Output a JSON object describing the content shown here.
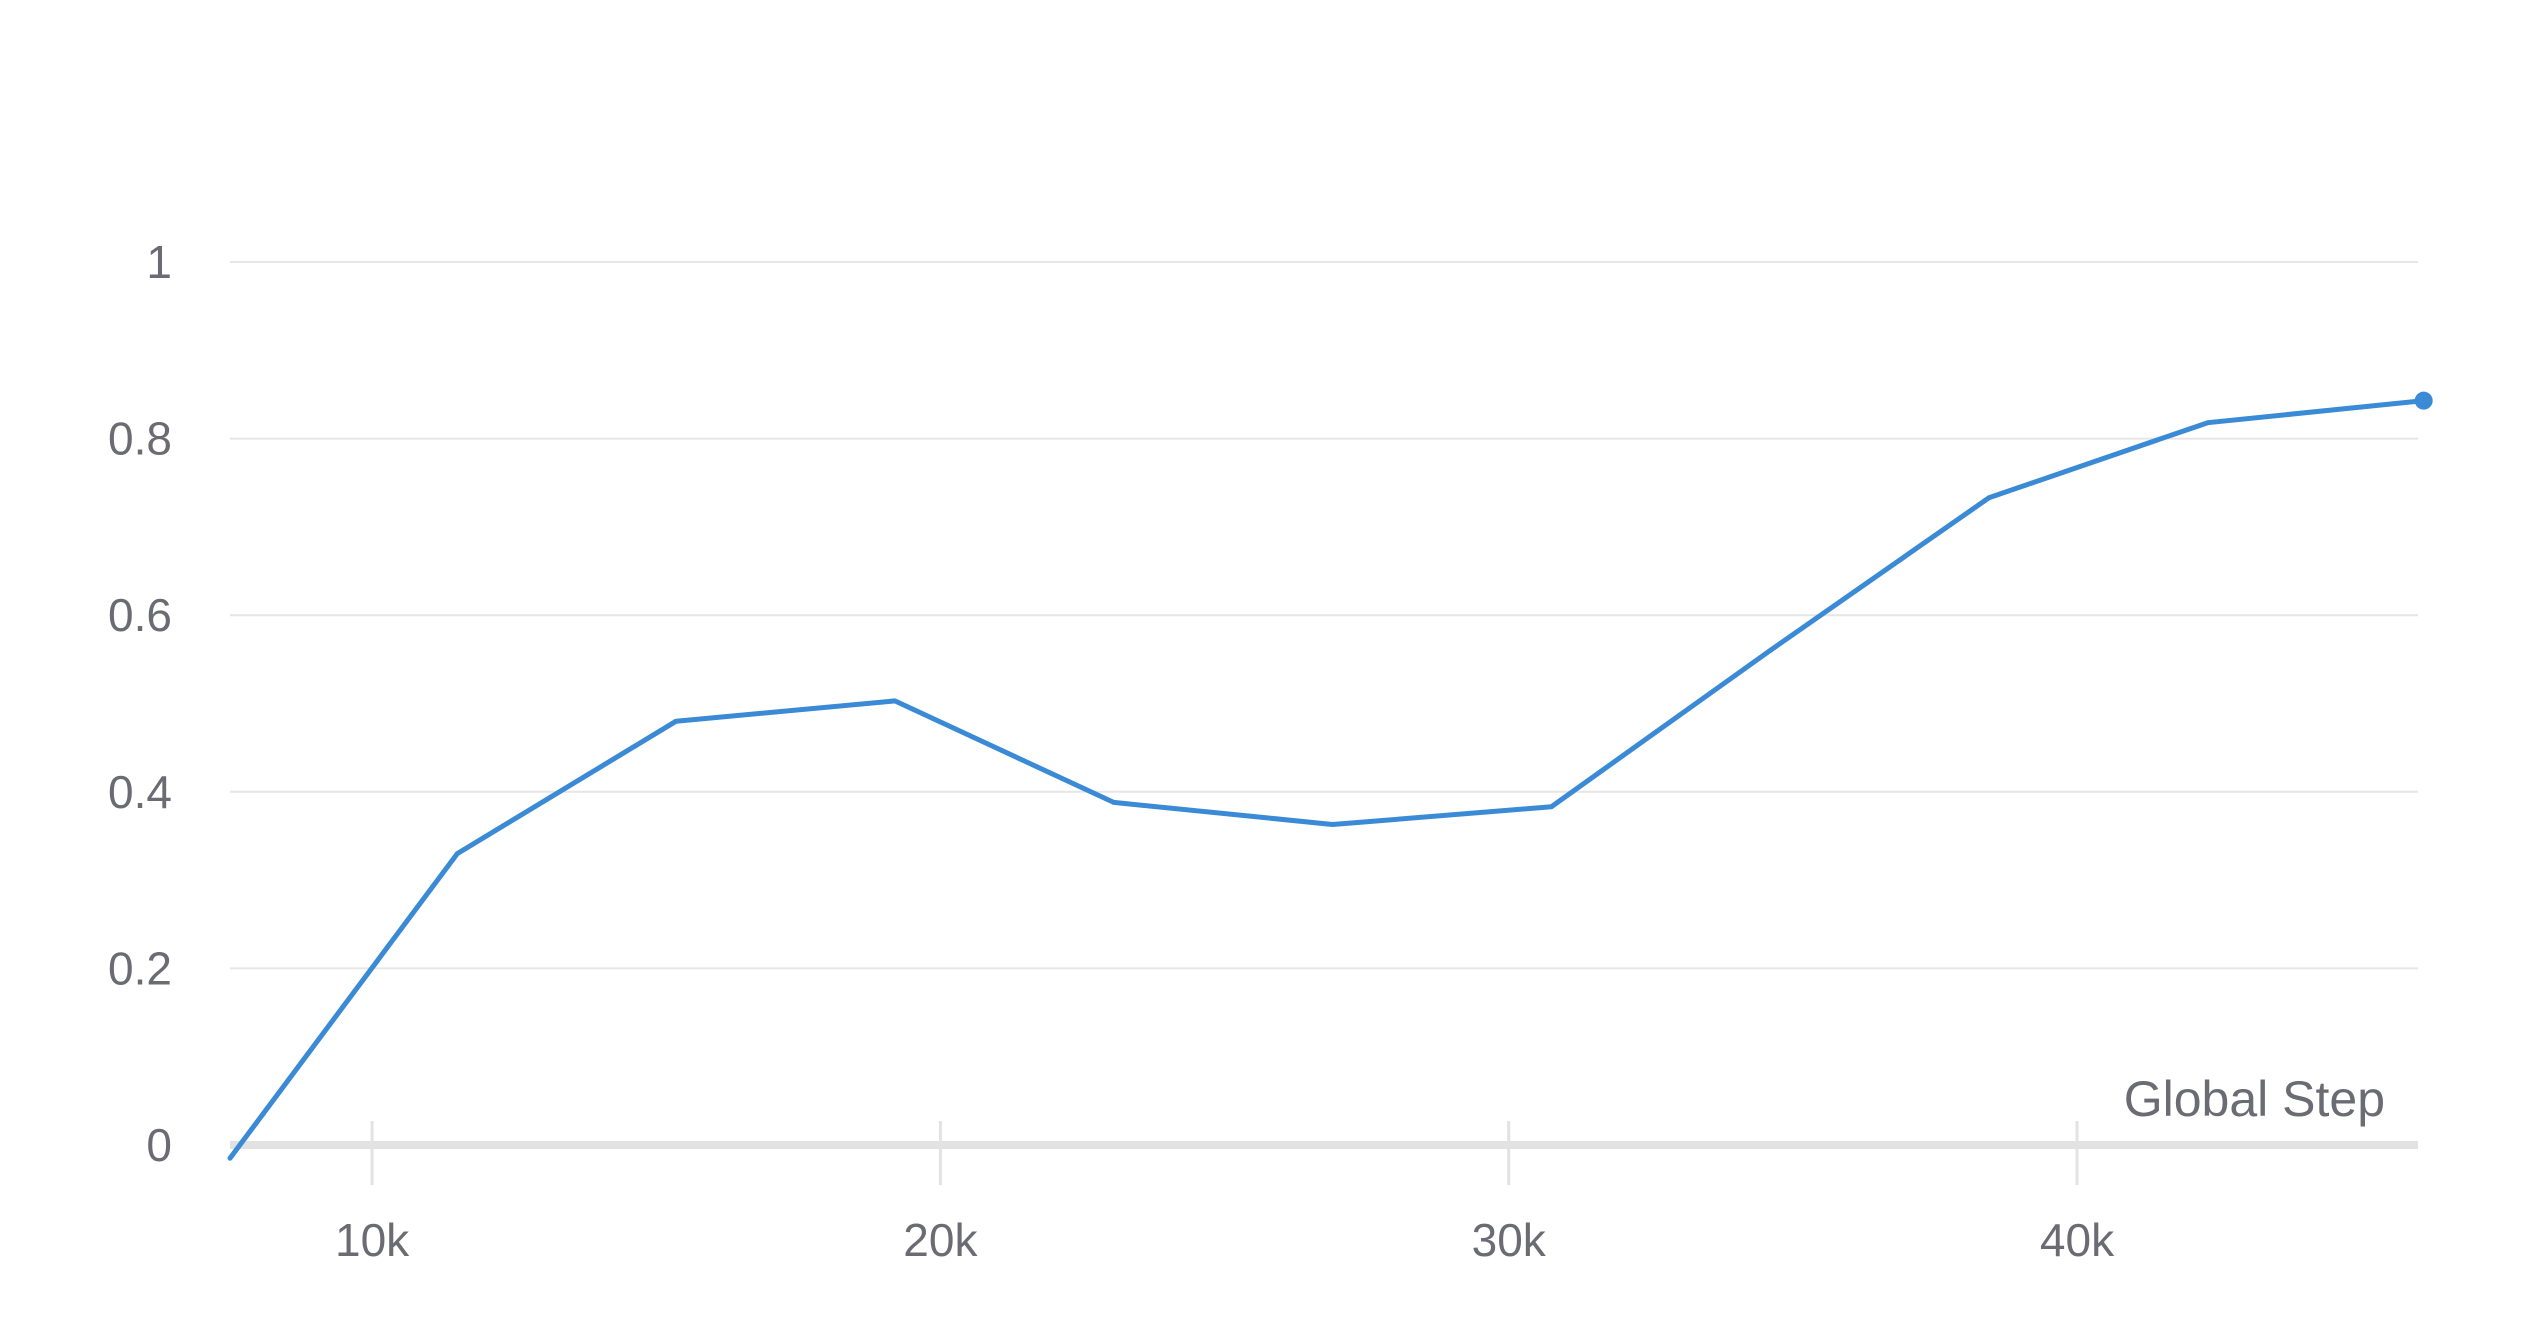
{
  "chart_data": {
    "type": "line",
    "title": "",
    "xlabel": "Global Step",
    "ylabel": "",
    "xlim": [
      7500,
      46000
    ],
    "ylim": [
      0,
      1
    ],
    "grid": true,
    "legend": "none",
    "x_ticks": [
      10000,
      20000,
      30000,
      40000
    ],
    "x_tick_labels": [
      "10k",
      "20k",
      "30k",
      "40k"
    ],
    "y_ticks": [
      0,
      0.2,
      0.4,
      0.6,
      0.8,
      1
    ],
    "y_tick_labels": [
      "0",
      "0.2",
      "0.4",
      "0.6",
      "0.8",
      "1"
    ],
    "series": [
      {
        "color": "#3a8ad6",
        "x": [
          7500,
          11500,
          15350,
          19200,
          23050,
          26900,
          30750,
          34600,
          38450,
          42300,
          46100
        ],
        "y": [
          -0.015,
          0.33,
          0.48,
          0.503,
          0.388,
          0.363,
          0.383,
          0.56,
          0.733,
          0.818,
          0.843
        ]
      }
    ]
  }
}
